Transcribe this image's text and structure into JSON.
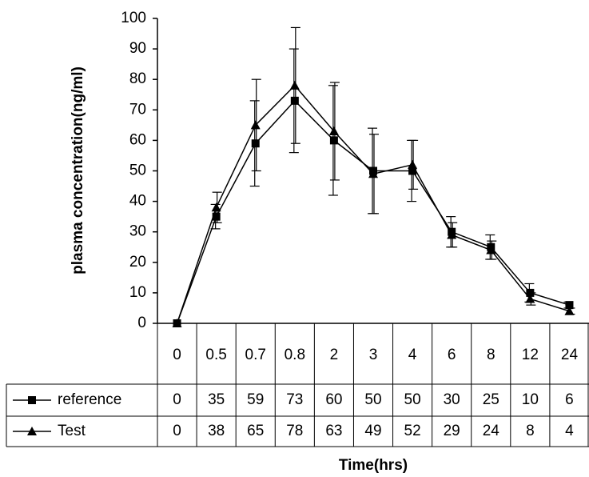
{
  "chart_data": {
    "type": "line",
    "x_label": "Time(hrs)",
    "y_label": "plasma concentration(ng/ml)",
    "categories": [
      "0",
      "0.5",
      "0.7",
      "0.8",
      "2",
      "3",
      "4",
      "6",
      "8",
      "12",
      "24"
    ],
    "series": [
      {
        "name": "reference",
        "color": "#000000",
        "marker": "square",
        "values": [
          0,
          35,
          59,
          73,
          60,
          50,
          50,
          30,
          25,
          10,
          6
        ],
        "errors": [
          0,
          4,
          14,
          17,
          18,
          14,
          10,
          5,
          4,
          3,
          1
        ]
      },
      {
        "name": "Test",
        "color": "#000000",
        "marker": "triangle",
        "values": [
          0,
          38,
          65,
          78,
          63,
          49,
          52,
          29,
          24,
          8,
          4
        ],
        "errors": [
          0,
          5,
          15,
          19,
          16,
          13,
          8,
          4,
          3,
          2,
          1
        ]
      }
    ],
    "ylim": [
      0,
      100
    ],
    "yticks": [
      0,
      10,
      20,
      30,
      40,
      50,
      60,
      70,
      80,
      90,
      100
    ],
    "grid": false
  }
}
